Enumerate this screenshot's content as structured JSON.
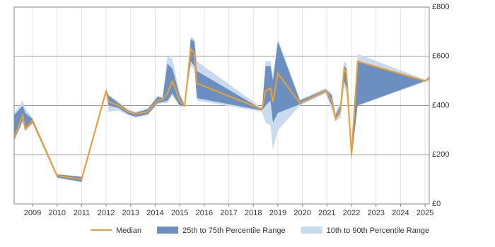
{
  "chart_data": {
    "type": "band-line",
    "x": [
      2008.25,
      2008.6,
      2008.7,
      2009.0,
      2010.0,
      2011.0,
      2012.0,
      2012.1,
      2012.5,
      2012.9,
      2013.2,
      2013.7,
      2014.1,
      2014.3,
      2014.5,
      2014.7,
      2015.0,
      2015.2,
      2015.45,
      2015.6,
      2015.7,
      2018.35,
      2018.5,
      2018.7,
      2018.8,
      2019.0,
      2019.9,
      2020.95,
      2021.2,
      2021.35,
      2021.55,
      2021.7,
      2021.8,
      2022.0,
      2022.25,
      2025.0,
      2025.15
    ],
    "series": [
      {
        "name": "Median",
        "color": "#f0a02a",
        "values": [
          270,
          360,
          305,
          340,
          115,
          100,
          460,
          415,
          400,
          375,
          365,
          375,
          420,
          425,
          450,
          500,
          420,
          400,
          630,
          610,
          490,
          385,
          460,
          470,
          415,
          530,
          410,
          460,
          420,
          345,
          380,
          550,
          530,
          200,
          580,
          500,
          510
        ]
      },
      {
        "name": "25th to 75th Percentile Range",
        "color": "#6b8fc0",
        "lower": [
          260,
          340,
          300,
          330,
          108,
          90,
          450,
          400,
          390,
          365,
          355,
          365,
          410,
          415,
          420,
          450,
          400,
          398,
          580,
          560,
          430,
          380,
          400,
          420,
          330,
          370,
          405,
          455,
          400,
          340,
          370,
          500,
          470,
          185,
          400,
          500,
          505
        ],
        "upper": [
          360,
          400,
          370,
          345,
          120,
          110,
          465,
          440,
          410,
          380,
          370,
          385,
          435,
          430,
          570,
          550,
          440,
          402,
          670,
          660,
          540,
          385,
          560,
          560,
          500,
          660,
          420,
          465,
          440,
          360,
          400,
          560,
          550,
          215,
          580,
          500,
          515
        ]
      },
      {
        "name": "10th to 90th Percentile Range",
        "color": "#c8dbef",
        "lower": [
          255,
          330,
          295,
          325,
          105,
          88,
          445,
          375,
          380,
          360,
          350,
          360,
          405,
          410,
          410,
          440,
          395,
          396,
          560,
          550,
          420,
          375,
          330,
          320,
          220,
          300,
          400,
          450,
          380,
          335,
          350,
          480,
          450,
          170,
          400,
          495,
          500
        ],
        "upper": [
          370,
          420,
          390,
          350,
          122,
          112,
          470,
          445,
          415,
          385,
          375,
          390,
          440,
          435,
          600,
          590,
          450,
          404,
          680,
          670,
          580,
          390,
          580,
          580,
          520,
          670,
          425,
          470,
          450,
          370,
          420,
          580,
          570,
          230,
          610,
          505,
          520
        ]
      }
    ],
    "xlim": [
      2008.25,
      2025.17
    ],
    "xticks": [
      2009,
      2010,
      2011,
      2012,
      2013,
      2014,
      2015,
      2016,
      2017,
      2018,
      2019,
      2020,
      2021,
      2022,
      2023,
      2024,
      2025
    ],
    "ylim": [
      0,
      800
    ],
    "yticks": [
      {
        "value": 0,
        "label": "£0"
      },
      {
        "value": 200,
        "label": "£200"
      },
      {
        "value": 400,
        "label": "£400"
      },
      {
        "value": 600,
        "label": "£600"
      },
      {
        "value": 800,
        "label": "£800"
      }
    ],
    "grid": true,
    "legend": "bottom"
  }
}
